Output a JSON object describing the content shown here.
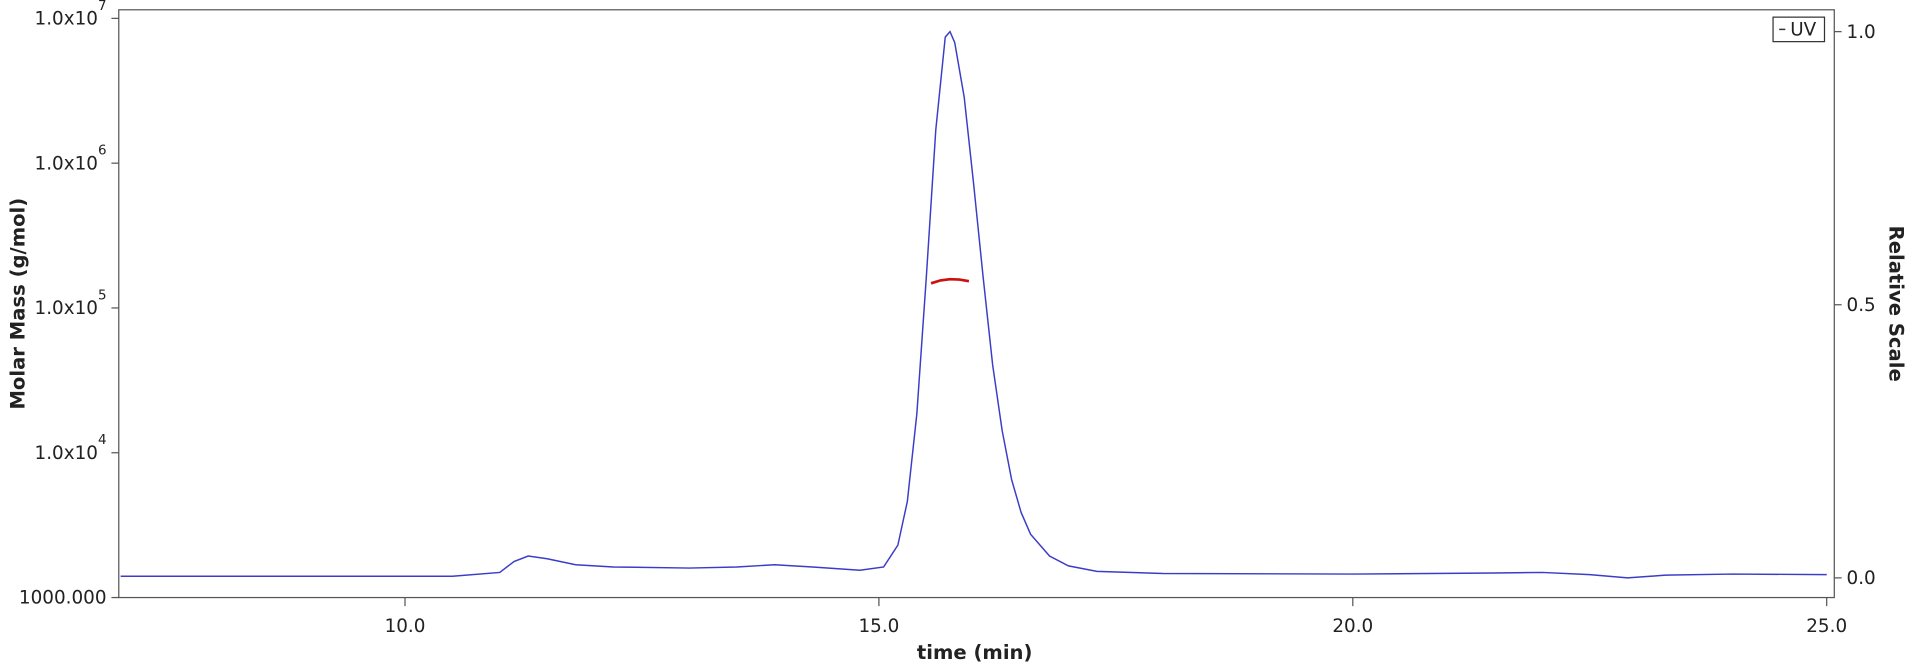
{
  "chart_data": {
    "type": "line",
    "xlabel": "time (min)",
    "ylabel": "Molar Mass (g/mol)",
    "y2label": "Relative Scale",
    "xlim": [
      6.98,
      25.08
    ],
    "xticks": [
      {
        "value": 10,
        "label": "10.0"
      },
      {
        "value": 15,
        "label": "15.0"
      },
      {
        "value": 20,
        "label": "20.0"
      },
      {
        "value": 25,
        "label": "25.0"
      }
    ],
    "ylog": true,
    "ylim": [
      1000,
      11460000
    ],
    "yticks": [
      {
        "value": 1000,
        "label": "1000.000"
      },
      {
        "value": 10000,
        "label": "1.0x10",
        "exponent": "4"
      },
      {
        "value": 100000,
        "label": "1.0x10",
        "exponent": "5"
      },
      {
        "value": 1000000,
        "label": "1.0x10",
        "exponent": "6"
      },
      {
        "value": 10000000,
        "label": "1.0x10",
        "exponent": "7"
      }
    ],
    "y2lim": [
      -0.036,
      1.04
    ],
    "y2ticks": [
      {
        "value": 0,
        "label": "0.0"
      },
      {
        "value": 0.5,
        "label": "0.5"
      },
      {
        "value": 1,
        "label": "1.0"
      }
    ],
    "legend": "upper right",
    "series": [
      {
        "name": "UV",
        "color": "#3c3cc8",
        "axis": "y2",
        "x": [
          7.0,
          8.5,
          10.5,
          11.0,
          11.15,
          11.3,
          11.5,
          11.8,
          12.2,
          13.0,
          13.5,
          13.9,
          14.3,
          14.8,
          15.05,
          15.2,
          15.3,
          15.4,
          15.5,
          15.6,
          15.7,
          15.75,
          15.8,
          15.9,
          16.0,
          16.1,
          16.2,
          16.3,
          16.4,
          16.5,
          16.6,
          16.8,
          17.0,
          17.3,
          18.0,
          20.0,
          21.5,
          22.0,
          22.5,
          22.9,
          23.3,
          24.0,
          25.0
        ],
        "values": [
          0.003,
          0.003,
          0.003,
          0.01,
          0.03,
          0.04,
          0.035,
          0.024,
          0.02,
          0.018,
          0.02,
          0.024,
          0.02,
          0.014,
          0.02,
          0.06,
          0.14,
          0.3,
          0.55,
          0.82,
          0.99,
          1.0,
          0.98,
          0.88,
          0.72,
          0.55,
          0.39,
          0.27,
          0.18,
          0.12,
          0.08,
          0.04,
          0.022,
          0.012,
          0.008,
          0.007,
          0.009,
          0.01,
          0.006,
          0.0,
          0.005,
          0.007,
          0.006
        ]
      },
      {
        "color": "#cc1010",
        "x": [
          15.55,
          15.65,
          15.75,
          15.85,
          15.95
        ],
        "values": [
          148000,
          155000,
          158000,
          157000,
          153000
        ]
      }
    ]
  }
}
